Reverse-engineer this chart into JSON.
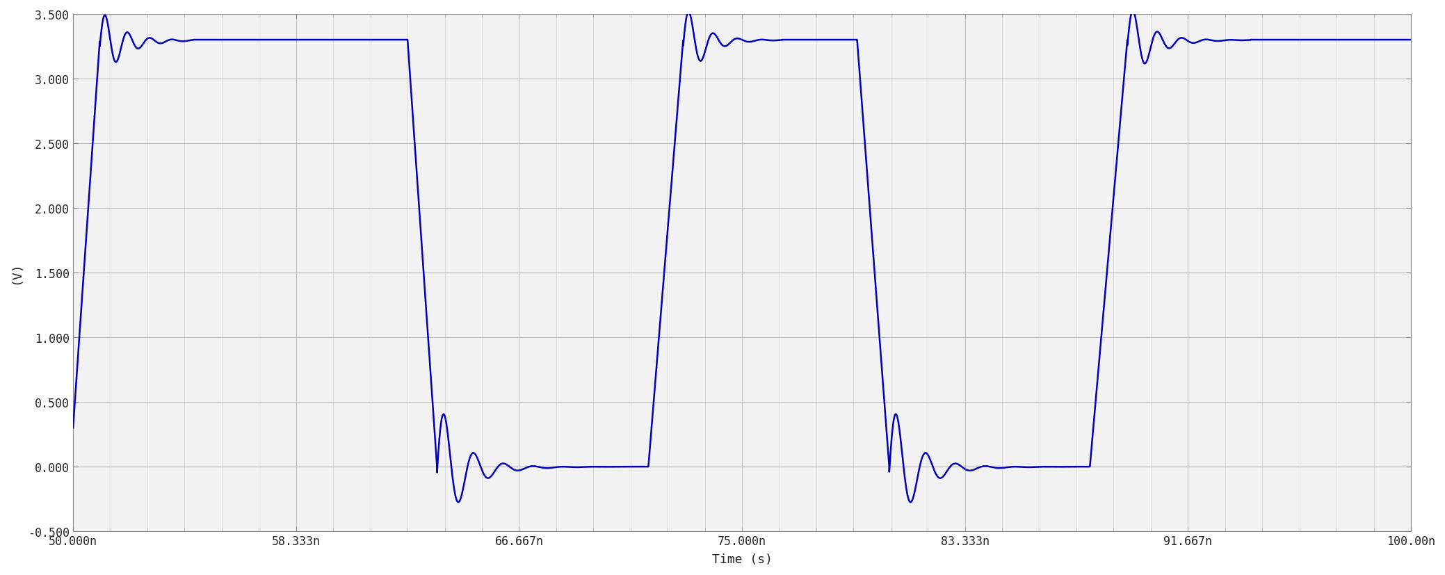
{
  "xlim": [
    5e-08,
    1e-07
  ],
  "ylim": [
    -0.5,
    3.5
  ],
  "yticks": [
    -0.5,
    0.0,
    0.5,
    1.0,
    1.5,
    2.0,
    2.5,
    3.0,
    3.5
  ],
  "xtick_labels": [
    "50.000n",
    "58.333n",
    "66.667n",
    "75.000n",
    "83.333n",
    "91.667n",
    "100.00n"
  ],
  "xtick_values": [
    5e-08,
    5.8333e-08,
    6.6667e-08,
    7.5e-08,
    8.3333e-08,
    9.1667e-08,
    1e-07
  ],
  "xlabel": "Time (s)",
  "ylabel": "(V)",
  "line_color": "#0000bb",
  "line_width": 1.8,
  "bg_color": "#ffffff",
  "plot_bg_color": "#f5f5f5",
  "grid_color": "#cccccc",
  "high_level": 3.3,
  "low_level": 0.0,
  "title_bg": "#dde8f0"
}
